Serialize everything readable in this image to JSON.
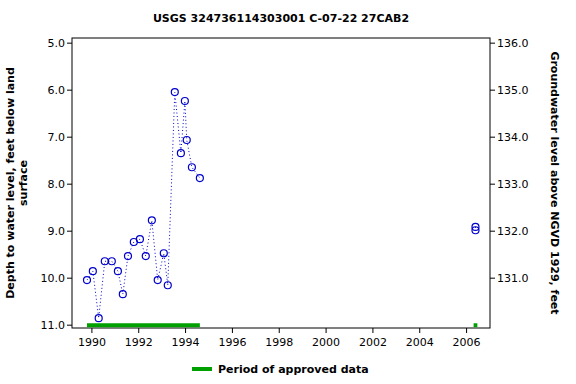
{
  "chart_data": {
    "type": "line",
    "title": "USGS 324736114303001 C-07-22 27CAB2",
    "ylabel": "Depth to water level, feet below land\nsurface",
    "y2label": "Groundwater level above NGVD 1929, feet",
    "xlim": [
      1989.15,
      2007.0
    ],
    "xticks": [
      1990,
      1992,
      1994,
      1996,
      1998,
      2000,
      2002,
      2004,
      2006
    ],
    "ylim": [
      11.06,
      4.89
    ],
    "yticks": [
      {
        "value": 5,
        "label": "5.0"
      },
      {
        "value": 6,
        "label": "6.0"
      },
      {
        "value": 7,
        "label": "7.0"
      },
      {
        "value": 8,
        "label": "8.0"
      },
      {
        "value": 9,
        "label": "9.0"
      },
      {
        "value": 10,
        "label": "10.0"
      },
      {
        "value": 11,
        "label": "11.0"
      }
    ],
    "y2lim": [
      129.94,
      136.11
    ],
    "y2ticks": [
      {
        "value": 131,
        "label": "131.0"
      },
      {
        "value": 132,
        "label": "132.0"
      },
      {
        "value": 133,
        "label": "133.0"
      },
      {
        "value": 134,
        "label": "134.0"
      },
      {
        "value": 135,
        "label": "135.0"
      },
      {
        "value": 136,
        "label": "136.0"
      }
    ],
    "grid": false,
    "legend": "bottom",
    "series": [
      {
        "color": "#0000cc",
        "type": "line",
        "marker": "circle",
        "line_style": "dotted",
        "x": [
          1989.79,
          1990.04,
          1990.29,
          1990.55,
          1990.85,
          1991.11,
          1991.32,
          1991.54,
          1991.79,
          1992.05,
          1992.3,
          1992.56,
          1992.81,
          1993.07,
          1993.24,
          1993.54,
          1993.8,
          1993.97,
          1994.05,
          1994.27,
          1994.61,
          null,
          2006.38,
          2006.38
        ],
        "values": [
          10.04,
          9.85,
          10.85,
          9.64,
          9.64,
          9.85,
          10.34,
          9.53,
          9.23,
          9.17,
          9.53,
          8.77,
          10.04,
          9.47,
          10.15,
          6.04,
          7.34,
          6.23,
          7.06,
          7.64,
          7.87,
          null,
          8.91,
          8.98
        ]
      },
      {
        "name": "Period of approved data",
        "color": "#00a000",
        "type": "line",
        "marker": "none",
        "line_style": "solid",
        "x": [
          1989.79,
          1994.61,
          null,
          2006.3,
          2006.46
        ],
        "values": [
          11,
          11,
          null,
          11,
          11
        ]
      }
    ]
  }
}
